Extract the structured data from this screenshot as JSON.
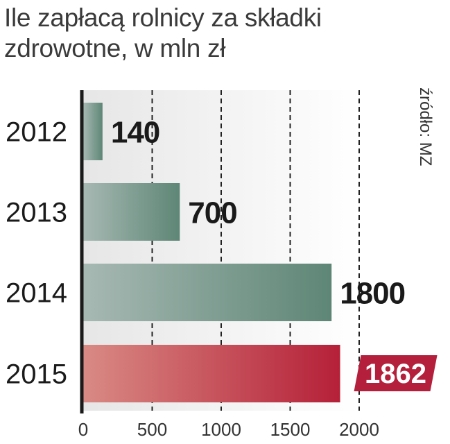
{
  "header": {
    "title_line1": "Ile zapłacą rolnicy za składki",
    "title_line2": "zdrowotne, w mln zł"
  },
  "source": "źródło: MZ",
  "colors": {
    "green_light": "#a7b9b3",
    "green_dark": "#5e8676",
    "red_light": "#d98a84",
    "red_dark": "#b52038",
    "badge": "#b41f3b",
    "axis": "#1a1a1a",
    "grid": "#222222",
    "label": "#1a1a1a"
  },
  "chart_data": {
    "type": "bar",
    "orientation": "horizontal",
    "categories": [
      "2012",
      "2013",
      "2014",
      "2015"
    ],
    "values": [
      140,
      700,
      1800,
      1862
    ],
    "value_labels": [
      "140",
      "700",
      "1800",
      "1862"
    ],
    "highlight_index": 3,
    "xlim": [
      0,
      2000
    ],
    "xticks": [
      0,
      500,
      1000,
      1500,
      2000
    ],
    "xtick_labels": [
      "0",
      "500",
      "1000",
      "1500",
      "2000"
    ],
    "grid": "dashed vertical",
    "title": "Ile zapłacą rolnicy za składki zdrowotne, w mln zł",
    "xlabel": "",
    "ylabel": ""
  }
}
